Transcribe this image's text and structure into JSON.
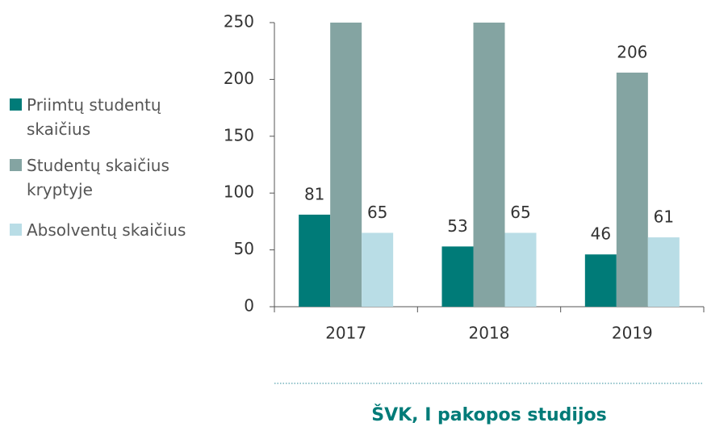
{
  "chart_data": {
    "type": "bar",
    "caption": "ŠVK, I pakopos studijos",
    "categories": [
      "2017",
      "2018",
      "2019"
    ],
    "series": [
      {
        "name": "Priimtų studentų skaičius",
        "color": "#007b78",
        "values": [
          81,
          53,
          46
        ],
        "value_labels": [
          "81",
          "53",
          "46"
        ]
      },
      {
        "name": "Studentų skaičius kryptyje",
        "color": "#84a4a2",
        "values": [
          250,
          250,
          206
        ],
        "value_labels": [
          null,
          null,
          "206"
        ]
      },
      {
        "name": "Absolventų skaičius",
        "color": "#b9dde6",
        "values": [
          65,
          65,
          61
        ],
        "value_labels": [
          "65",
          "65",
          "61"
        ]
      }
    ],
    "ylim": [
      0,
      250
    ],
    "yticks": [
      0,
      50,
      100,
      150,
      200,
      250
    ],
    "grid": false,
    "legend": "left"
  }
}
